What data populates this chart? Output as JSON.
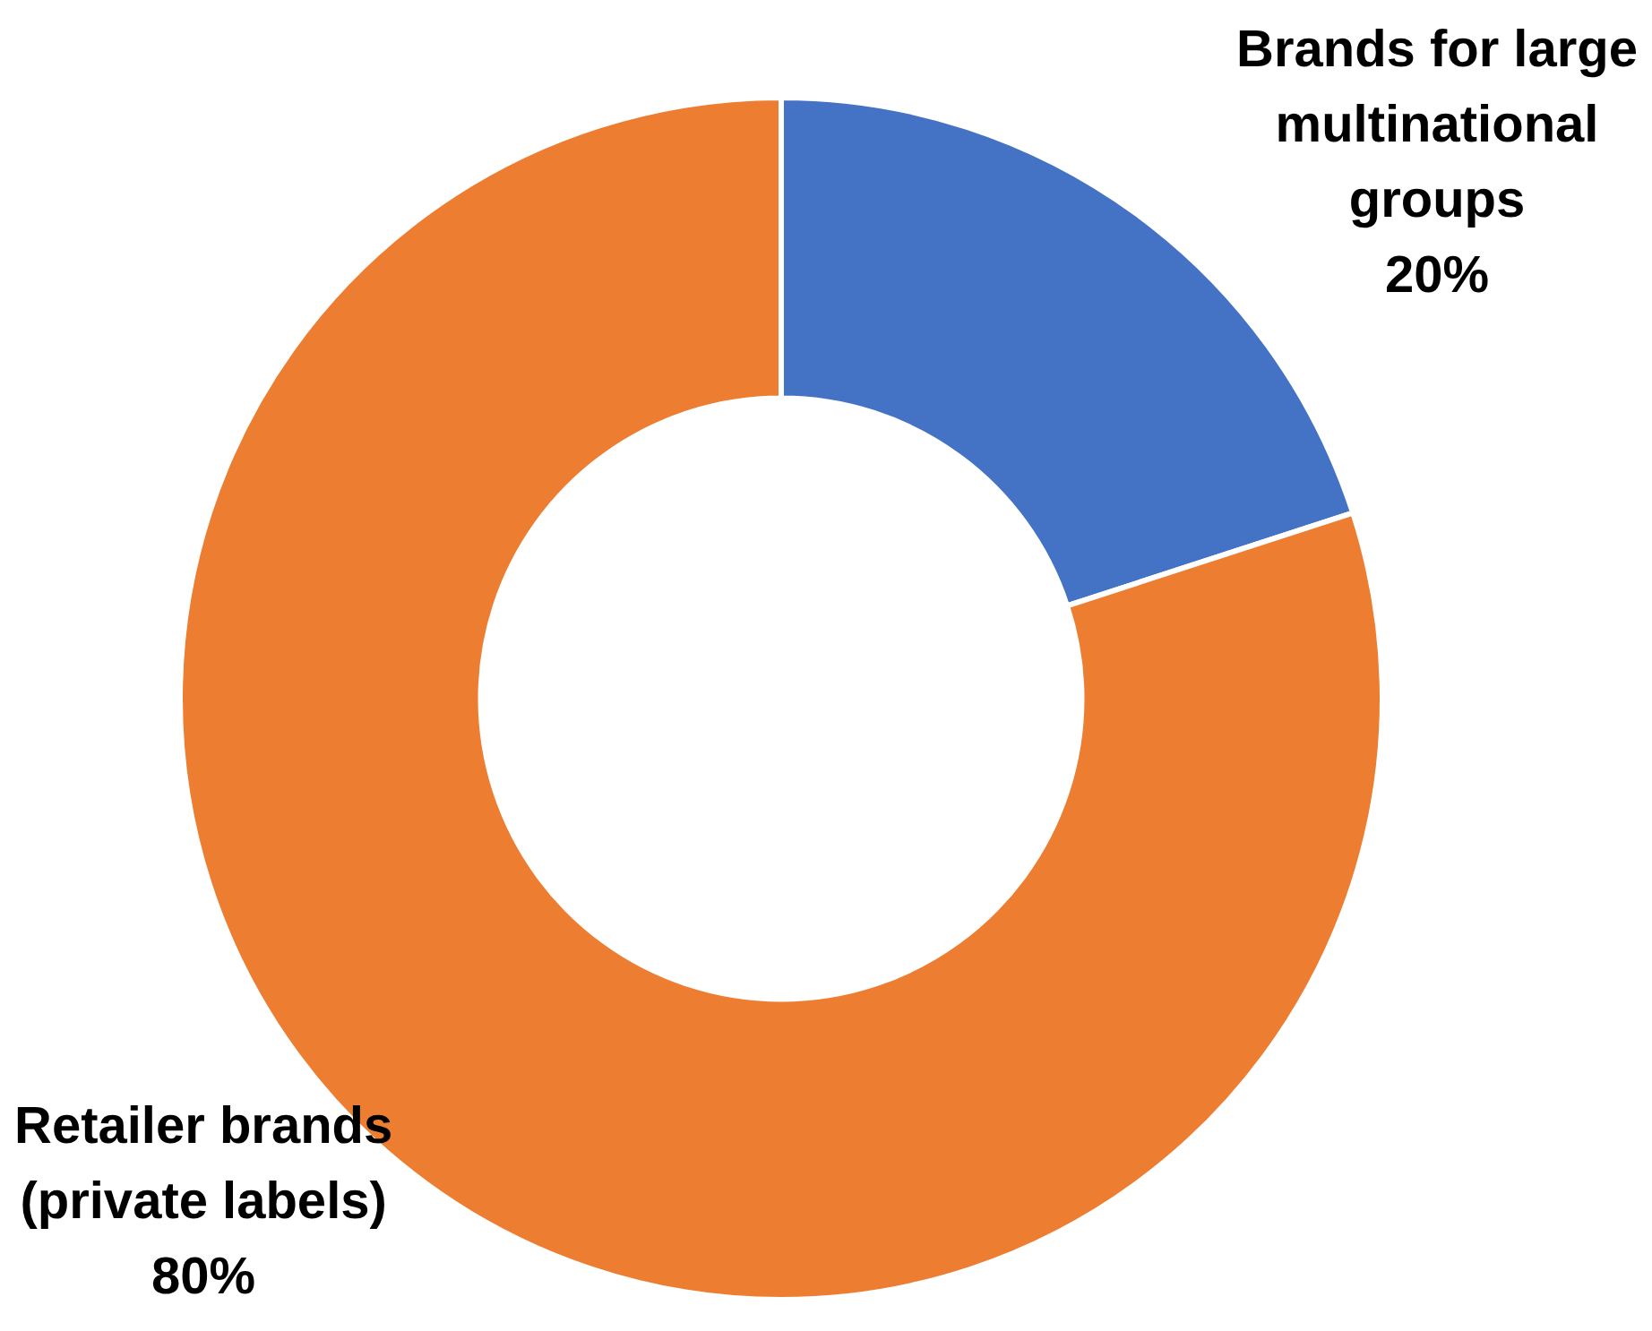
{
  "chart_data": {
    "type": "donut",
    "categories": [
      "Brands for large multinational groups",
      "Retailer brands (private labels)"
    ],
    "values": [
      20,
      80
    ],
    "colors": [
      "#4472c4",
      "#ed7d31"
    ],
    "value_labels": [
      "20%",
      "80%"
    ],
    "legend": false
  }
}
